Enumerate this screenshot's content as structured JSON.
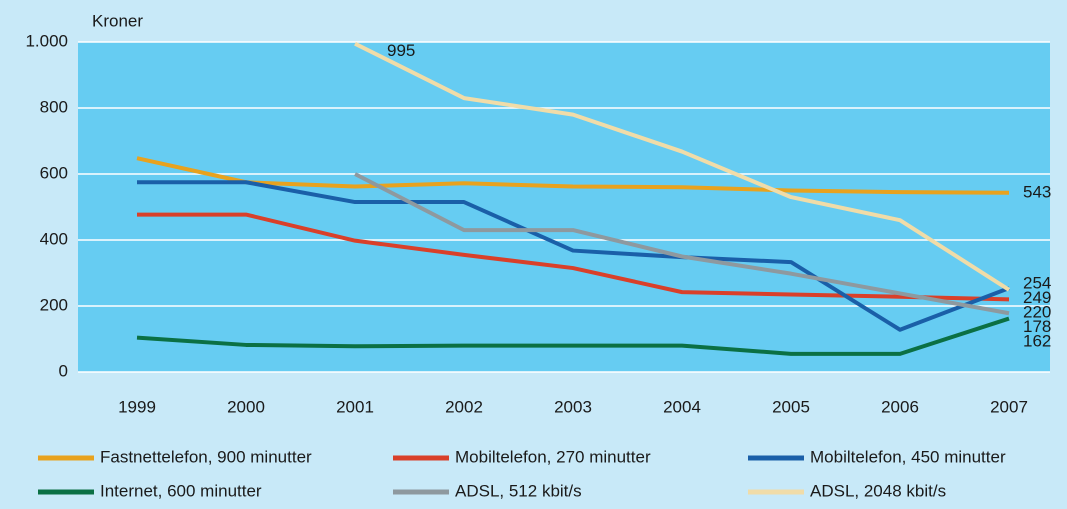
{
  "chart_data": {
    "type": "line",
    "y_axis_label": "Kroner",
    "categories": [
      "1999",
      "2000",
      "2001",
      "2002",
      "2003",
      "2004",
      "2005",
      "2006",
      "2007"
    ],
    "series": [
      {
        "name": "Fastnettelefon, 900 minutter",
        "color": "#e8a21e",
        "values": [
          648,
          575,
          562,
          572,
          562,
          560,
          550,
          545,
          543
        ]
      },
      {
        "name": "Mobiltelefon, 270 minutter",
        "color": "#d9402a",
        "values": [
          477,
          477,
          398,
          355,
          315,
          242,
          235,
          228,
          220
        ]
      },
      {
        "name": "Mobiltelefon, 450 minutter",
        "color": "#1a5fa8",
        "values": [
          575,
          575,
          515,
          515,
          368,
          348,
          333,
          128,
          254
        ]
      },
      {
        "name": "Internet, 600 minutter",
        "color": "#0b7044",
        "values": [
          104,
          82,
          78,
          80,
          80,
          80,
          55,
          55,
          162
        ]
      },
      {
        "name": "ADSL, 512 kbit/s",
        "color": "#8e999f",
        "values": [
          null,
          null,
          600,
          430,
          430,
          350,
          298,
          238,
          178
        ]
      },
      {
        "name": "ADSL, 2048 kbit/s",
        "color": "#f0dca8",
        "values": [
          null,
          null,
          995,
          830,
          780,
          668,
          530,
          460,
          249
        ]
      }
    ],
    "ylim": [
      0,
      1000
    ],
    "yticks": [
      0,
      200,
      400,
      600,
      800,
      {
        "value": 1000,
        "label": "1.000"
      }
    ],
    "grid": true
  }
}
